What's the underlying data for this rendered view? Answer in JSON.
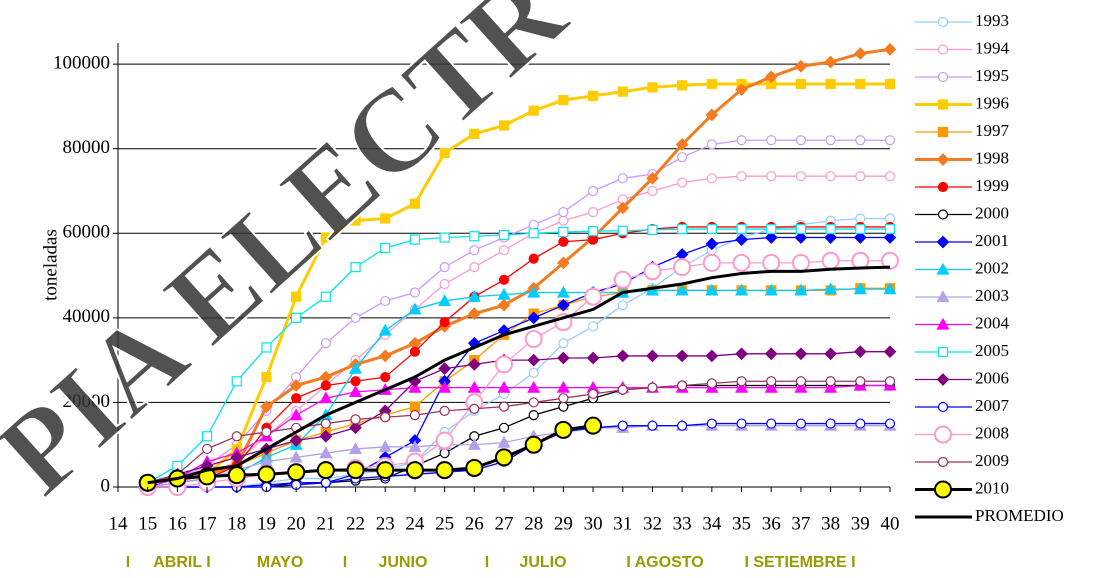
{
  "chart_data": {
    "type": "line",
    "ylabel": "toneladas",
    "watermark": "PIA ELECTR",
    "month_labels": [
      "I",
      "ABRIL I",
      "MAYO",
      "I",
      "JUNIO",
      "I",
      "JULIO",
      "I AGOSTO",
      "I SETIEMBRE I"
    ],
    "x": [
      15,
      16,
      17,
      18,
      19,
      20,
      21,
      22,
      23,
      24,
      25,
      26,
      27,
      28,
      29,
      30,
      31,
      32,
      33,
      34,
      35,
      36,
      37,
      38,
      39,
      40
    ],
    "xlim": [
      14,
      40
    ],
    "xticks": [
      14,
      15,
      16,
      17,
      18,
      19,
      20,
      21,
      22,
      23,
      24,
      25,
      26,
      27,
      28,
      29,
      30,
      31,
      32,
      33,
      34,
      35,
      36,
      37,
      38,
      39,
      40
    ],
    "ylim": [
      0,
      105000
    ],
    "yticks": [
      0,
      20000,
      40000,
      60000,
      80000,
      100000
    ],
    "grid": true,
    "series": [
      {
        "name": "1993",
        "color": "#99ccff",
        "marker": "circle",
        "open": true,
        "values": [
          0,
          0,
          0,
          0,
          1000,
          2000,
          2000,
          3000,
          4000,
          6000,
          13000,
          18000,
          22000,
          27000,
          34000,
          38000,
          43000,
          47000,
          52000,
          56000,
          59000,
          61000,
          62000,
          63000,
          63500,
          63500
        ]
      },
      {
        "name": "1994",
        "color": "#ff99cc",
        "marker": "circle",
        "open": true,
        "values": [
          0,
          1000,
          3000,
          6000,
          12000,
          18000,
          24000,
          30000,
          36000,
          42000,
          48000,
          52000,
          56000,
          60000,
          63000,
          65000,
          68000,
          70000,
          72000,
          73000,
          73500,
          73500,
          73500,
          73500,
          73500,
          73500
        ]
      },
      {
        "name": "1995",
        "color": "#cc99ff",
        "marker": "circle",
        "open": true,
        "values": [
          0,
          2000,
          5000,
          10000,
          18000,
          26000,
          34000,
          40000,
          44000,
          46000,
          52000,
          56000,
          59000,
          62000,
          65000,
          70000,
          73000,
          74000,
          78000,
          81000,
          82000,
          82000,
          82000,
          82000,
          82000,
          82000
        ]
      },
      {
        "name": "1996",
        "color": "#ffcc00",
        "marker": "square",
        "width": 3,
        "values": [
          1000,
          2000,
          3000,
          9000,
          26000,
          45000,
          59000,
          63000,
          63500,
          67000,
          79000,
          83500,
          85500,
          89000,
          91500,
          92500,
          93500,
          94500,
          95000,
          95300,
          95300,
          95300,
          95300,
          95300,
          95300,
          95300
        ]
      },
      {
        "name": "1997",
        "color": "#ff9900",
        "marker": "square",
        "values": [
          0,
          1000,
          2000,
          5000,
          8000,
          11000,
          13000,
          15000,
          17000,
          19000,
          25000,
          30000,
          36000,
          41000,
          43000,
          45000,
          46000,
          46500,
          46500,
          46500,
          46500,
          46500,
          46500,
          46500,
          47000,
          47000
        ]
      },
      {
        "name": "1998",
        "color": "#f47b20",
        "marker": "diamond",
        "width": 3,
        "values": [
          1000,
          2000,
          3000,
          5000,
          19000,
          24000,
          26000,
          29000,
          31000,
          34000,
          38000,
          41000,
          43000,
          47000,
          53000,
          59000,
          66000,
          73000,
          81000,
          88000,
          94000,
          97000,
          99500,
          100500,
          102500,
          103500
        ]
      },
      {
        "name": "1999",
        "color": "#ff0000",
        "marker": "circle",
        "values": [
          0,
          1000,
          2000,
          5000,
          14000,
          21000,
          24000,
          25000,
          26000,
          32000,
          39000,
          45000,
          49000,
          54000,
          58000,
          58500,
          60000,
          61000,
          61500,
          61500,
          61500,
          61500,
          61500,
          61500,
          61500,
          61500
        ]
      },
      {
        "name": "2000",
        "color": "#000000",
        "marker": "circle",
        "open": true,
        "values": [
          0,
          0,
          0,
          0,
          0,
          1000,
          1000,
          1500,
          2000,
          5000,
          8000,
          12000,
          14000,
          17000,
          19000,
          21000,
          23000,
          23500,
          24000,
          24000,
          24000,
          24000,
          24000,
          24000,
          24000,
          24000
        ]
      },
      {
        "name": "2001",
        "color": "#0000ff",
        "marker": "diamond",
        "values": [
          0,
          0,
          0,
          0,
          500,
          1000,
          1000,
          3000,
          7000,
          11000,
          25000,
          34000,
          37000,
          40000,
          43000,
          46000,
          48000,
          52000,
          55000,
          57500,
          58500,
          59000,
          59000,
          59000,
          59000,
          59000
        ]
      },
      {
        "name": "2002",
        "color": "#00ccff",
        "marker": "triangle",
        "values": [
          0,
          1000,
          2000,
          3000,
          7000,
          10000,
          17000,
          28000,
          37000,
          42000,
          44000,
          45000,
          45500,
          46000,
          46000,
          46000,
          46000,
          46500,
          46500,
          46500,
          46500,
          46500,
          46500,
          46800,
          46800,
          46800
        ]
      },
      {
        "name": "2003",
        "color": "#b4a0e6",
        "marker": "triangle",
        "values": [
          0,
          1000,
          2000,
          4000,
          6000,
          7000,
          8000,
          9000,
          9500,
          9500,
          10000,
          10000,
          10500,
          12000,
          13000,
          14000,
          14000,
          14500,
          14500,
          14500,
          14500,
          14500,
          14500,
          14500,
          14500,
          14500
        ]
      },
      {
        "name": "2004",
        "color": "#ff00ff",
        "marker": "triangle",
        "values": [
          0,
          2000,
          6000,
          8000,
          12000,
          17000,
          21000,
          22500,
          23000,
          23500,
          23500,
          23500,
          23500,
          23500,
          23500,
          23500,
          23500,
          23500,
          23500,
          23500,
          23500,
          23500,
          23500,
          23500,
          24000,
          24000
        ]
      },
      {
        "name": "2005",
        "color": "#00e5ee",
        "marker": "square",
        "open": true,
        "values": [
          1000,
          5000,
          12000,
          25000,
          33000,
          40000,
          45000,
          52000,
          56500,
          58500,
          59000,
          59300,
          59600,
          60000,
          60300,
          60500,
          60600,
          60800,
          61000,
          61000,
          61000,
          61000,
          61000,
          61000,
          61000,
          61000
        ]
      },
      {
        "name": "2006",
        "color": "#800080",
        "marker": "diamond",
        "values": [
          1000,
          3000,
          5000,
          7000,
          9000,
          11000,
          12000,
          14000,
          18000,
          25000,
          28000,
          29000,
          30000,
          30000,
          30500,
          30500,
          31000,
          31000,
          31000,
          31000,
          31500,
          31500,
          31500,
          31500,
          32000,
          32000
        ]
      },
      {
        "name": "2007",
        "color": "#0000ff",
        "marker": "circle",
        "open": true,
        "values": [
          0,
          0,
          0,
          0,
          0,
          500,
          1000,
          2000,
          2500,
          3000,
          3500,
          4000,
          6000,
          10000,
          13000,
          14000,
          14500,
          14500,
          14500,
          15000,
          15000,
          15000,
          15000,
          15000,
          15000,
          15000
        ]
      },
      {
        "name": "2008",
        "color": "#ff99cc",
        "marker": "circle",
        "open": true,
        "big": true,
        "values": [
          0,
          0,
          1000,
          2000,
          3000,
          3500,
          4000,
          4500,
          5000,
          6000,
          11000,
          20000,
          29000,
          35000,
          39000,
          45000,
          49000,
          51000,
          52000,
          53000,
          53000,
          53000,
          53000,
          53500,
          53500,
          53500
        ]
      },
      {
        "name": "2009",
        "color": "#993366",
        "marker": "circle",
        "open": true,
        "values": [
          1000,
          3000,
          9000,
          12000,
          13000,
          14000,
          15000,
          16000,
          16500,
          17000,
          18000,
          18500,
          19000,
          20000,
          21000,
          22000,
          23000,
          23500,
          24000,
          24500,
          25000,
          25000,
          25000,
          25000,
          25000,
          25000
        ]
      },
      {
        "name": "2010",
        "color": "#000000",
        "marker": "circle",
        "marker_fill": "#ffff00",
        "big": true,
        "width": 3,
        "values": [
          1000,
          2000,
          2500,
          2800,
          3000,
          3500,
          4000,
          4000,
          4000,
          4000,
          4000,
          4500,
          7000,
          10000,
          13500,
          14500,
          null,
          null,
          null,
          null,
          null,
          null,
          null,
          null,
          null,
          null
        ]
      },
      {
        "name": "PROMEDIO",
        "color": "#000000",
        "marker": "none",
        "width": 3,
        "values": [
          1000,
          2000,
          4000,
          5000,
          9000,
          13000,
          17000,
          20000,
          23000,
          26000,
          30000,
          33000,
          36000,
          38000,
          40000,
          42000,
          46000,
          47000,
          48000,
          49500,
          50500,
          51000,
          51000,
          51500,
          51800,
          52000
        ]
      }
    ]
  }
}
